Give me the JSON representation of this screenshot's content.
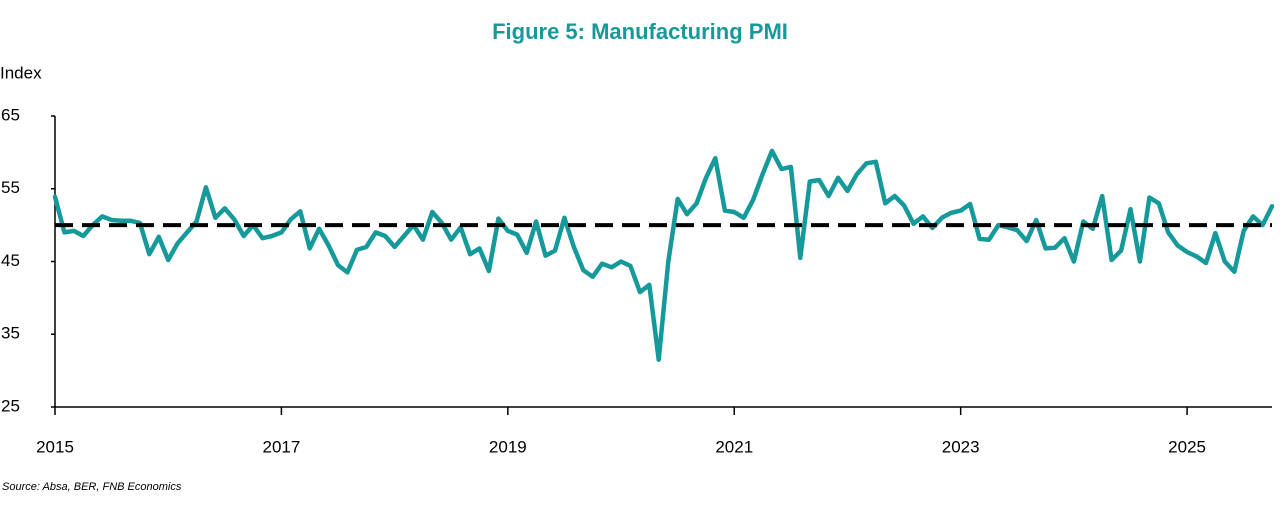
{
  "chart_data": {
    "type": "line",
    "title": "Figure 5: Manufacturing PMI",
    "y_label": "Index",
    "source": "Source: Absa, BER, FNB Economics",
    "x": [
      2015,
      2015.083,
      2015.167,
      2015.25,
      2015.333,
      2015.417,
      2015.5,
      2015.583,
      2015.667,
      2015.75,
      2015.833,
      2015.917,
      2016,
      2016.083,
      2016.167,
      2016.25,
      2016.333,
      2016.417,
      2016.5,
      2016.583,
      2016.667,
      2016.75,
      2016.833,
      2016.917,
      2017,
      2017.083,
      2017.167,
      2017.25,
      2017.333,
      2017.417,
      2017.5,
      2017.583,
      2017.667,
      2017.75,
      2017.833,
      2017.917,
      2018,
      2018.083,
      2018.167,
      2018.25,
      2018.333,
      2018.417,
      2018.5,
      2018.583,
      2018.667,
      2018.75,
      2018.833,
      2018.917,
      2019,
      2019.083,
      2019.167,
      2019.25,
      2019.333,
      2019.417,
      2019.5,
      2019.583,
      2019.667,
      2019.75,
      2019.833,
      2019.917,
      2020,
      2020.083,
      2020.167,
      2020.25,
      2020.333,
      2020.417,
      2020.5,
      2020.583,
      2020.667,
      2020.75,
      2020.833,
      2020.917,
      2021,
      2021.083,
      2021.167,
      2021.25,
      2021.333,
      2021.417,
      2021.5,
      2021.583,
      2021.667,
      2021.75,
      2021.833,
      2021.917,
      2022,
      2022.083,
      2022.167,
      2022.25,
      2022.333,
      2022.417,
      2022.5,
      2022.583,
      2022.667,
      2022.75,
      2022.833,
      2022.917,
      2023,
      2023.083,
      2023.167,
      2023.25,
      2023.333,
      2023.417,
      2023.5,
      2023.583,
      2023.667,
      2023.75,
      2023.833,
      2023.917,
      2024,
      2024.083,
      2024.167,
      2024.25,
      2024.333,
      2024.417,
      2024.5,
      2024.583,
      2024.667,
      2024.75,
      2024.833,
      2024.917,
      2025,
      2025.083,
      2025.167,
      2025.25,
      2025.333,
      2025.417,
      2025.5,
      2025.583,
      2025.667,
      2025.75
    ],
    "series": [
      {
        "name": "Manufacturing PMI",
        "color": "#16999a",
        "values": [
          53.9,
          49.0,
          49.2,
          48.5,
          50.0,
          51.2,
          50.7,
          50.6,
          50.6,
          50.3,
          46.0,
          48.4,
          45.2,
          47.5,
          49.0,
          50.5,
          55.2,
          51.0,
          52.3,
          50.8,
          48.5,
          50.0,
          48.2,
          48.5,
          49.0,
          50.8,
          51.9,
          46.8,
          49.5,
          47.2,
          44.5,
          43.5,
          46.6,
          47.0,
          49.0,
          48.5,
          47.0,
          48.5,
          50.0,
          48.0,
          51.8,
          50.3,
          48.0,
          49.7,
          46.0,
          46.8,
          43.7,
          50.9,
          49.2,
          48.7,
          46.2,
          50.5,
          45.8,
          46.5,
          51.0,
          47.0,
          43.8,
          42.9,
          44.7,
          44.2,
          45.0,
          44.4,
          40.8,
          41.8,
          31.5,
          45.0,
          53.6,
          51.5,
          53.0,
          56.5,
          59.2,
          52.0,
          51.8,
          51.0,
          53.5,
          57.0,
          60.2,
          57.7,
          58.0,
          45.5,
          56.0,
          56.2,
          54.0,
          56.5,
          54.7,
          57.0,
          58.5,
          58.7,
          53.0,
          54.0,
          52.7,
          50.2,
          51.2,
          49.6,
          51.0,
          51.7,
          52.0,
          52.9,
          48.1,
          48.0,
          50.0,
          49.7,
          49.3,
          47.8,
          50.7,
          46.8,
          46.9,
          48.2,
          45.0,
          50.5,
          49.5,
          54.0,
          45.2,
          46.5,
          52.2,
          45.0,
          53.8,
          53.0,
          49.0,
          47.2,
          46.3,
          45.7,
          44.8,
          48.9,
          45.0,
          43.6,
          49.2,
          51.2,
          50.0,
          52.6
        ]
      }
    ],
    "threshold": 50,
    "xlim": [
      2015,
      2025.75
    ],
    "xticks": [
      2015,
      2017,
      2019,
      2021,
      2023,
      2025
    ],
    "ylim": [
      25,
      65
    ],
    "yticks": [
      25,
      35,
      45,
      55,
      65
    ]
  }
}
